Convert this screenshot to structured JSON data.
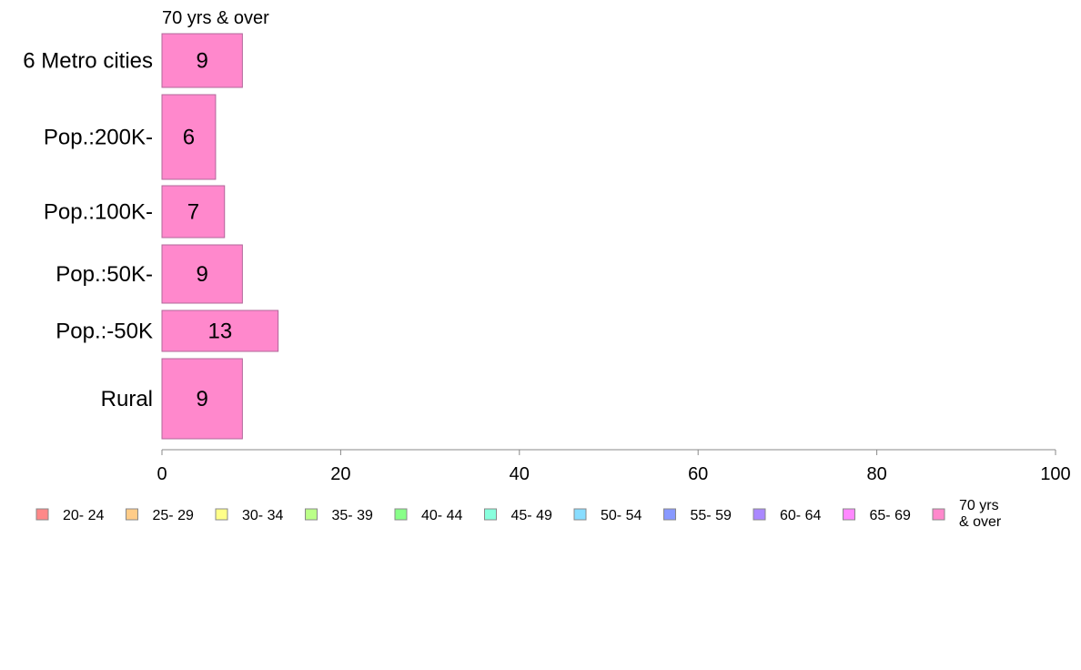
{
  "chart_data": {
    "type": "bar",
    "orientation": "horizontal",
    "stacked": true,
    "series_title": "70 yrs & over",
    "categories": [
      "6 Metro cities",
      "Pop.:200K-",
      "Pop.:100K-",
      "Pop.:50K-",
      "Pop.:-50K",
      "Rural"
    ],
    "series": [
      {
        "name": "70 yrs & over",
        "color": "#ff88cc",
        "values": [
          9,
          6,
          7,
          9,
          13,
          9
        ]
      }
    ],
    "xlim": [
      0,
      100
    ],
    "xticks": [
      "0",
      "20",
      "40",
      "60",
      "80",
      "100"
    ],
    "grid": false,
    "legend_position": "bottom",
    "legend": [
      {
        "label": "20- 24",
        "color": "#ff8888"
      },
      {
        "label": "25- 29",
        "color": "#ffcc88"
      },
      {
        "label": "30- 34",
        "color": "#ffff88"
      },
      {
        "label": "35- 39",
        "color": "#bbff88"
      },
      {
        "label": "40- 44",
        "color": "#88ff88"
      },
      {
        "label": "45- 49",
        "color": "#88ffdd"
      },
      {
        "label": "50- 54",
        "color": "#88ddff"
      },
      {
        "label": "55- 59",
        "color": "#8899ff"
      },
      {
        "label": "60- 64",
        "color": "#aa88ff"
      },
      {
        "label": "65- 69",
        "color": "#ff88ff"
      },
      {
        "label": "70 yrs\n& over",
        "color": "#ff88cc"
      }
    ]
  }
}
